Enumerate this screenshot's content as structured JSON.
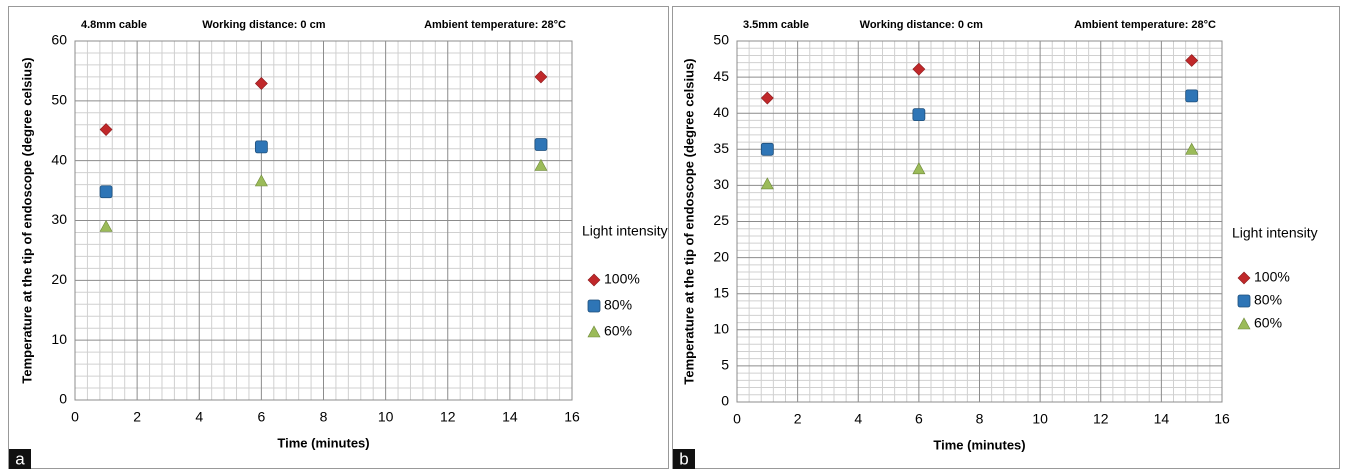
{
  "chart_data": [
    {
      "type": "scatter",
      "panel_label": "a",
      "annotations": [
        "4.8mm cable",
        "Working distance: 0 cm",
        "Ambient temperature: 28°C"
      ],
      "xlabel": "Time (minutes)",
      "ylabel": "Temperature at the tip of endoscope  (degree celsius)",
      "xlim": [
        0,
        16
      ],
      "xticks": [
        0,
        2,
        4,
        6,
        8,
        10,
        12,
        14,
        16
      ],
      "ylim": [
        0,
        60
      ],
      "yticks": [
        0,
        10,
        20,
        30,
        40,
        50,
        60
      ],
      "grid": true,
      "legend_title": "Light intensity",
      "series": [
        {
          "name": "100%",
          "color": "#c0282a",
          "marker": "diamond",
          "x": [
            1,
            6,
            15
          ],
          "values": [
            45.2,
            52.9,
            54
          ]
        },
        {
          "name": "80%",
          "color": "#2e75b6",
          "marker": "square",
          "x": [
            1,
            6,
            15
          ],
          "values": [
            34.8,
            42.3,
            42.7
          ]
        },
        {
          "name": "60%",
          "color": "#9bbb59",
          "marker": "triangle",
          "x": [
            1,
            6,
            15
          ],
          "values": [
            29,
            36.6,
            39.2
          ]
        }
      ]
    },
    {
      "type": "scatter",
      "panel_label": "b",
      "annotations": [
        "3.5mm cable",
        "Working distance: 0 cm",
        "Ambient temperature: 28°C"
      ],
      "xlabel": "Time (minutes)",
      "ylabel": "Temperature at the tip of endoscope  (degree celsius)",
      "xlim": [
        0,
        16
      ],
      "xticks": [
        0,
        2,
        4,
        6,
        8,
        10,
        12,
        14,
        16
      ],
      "ylim": [
        0,
        50
      ],
      "yticks": [
        0,
        5,
        10,
        15,
        20,
        25,
        30,
        35,
        40,
        45,
        50
      ],
      "grid": true,
      "legend_title": "Light intensity",
      "series": [
        {
          "name": "100%",
          "color": "#c0282a",
          "marker": "diamond",
          "x": [
            1,
            6,
            15
          ],
          "values": [
            42.1,
            46.1,
            47.3
          ]
        },
        {
          "name": "80%",
          "color": "#2e75b6",
          "marker": "square",
          "x": [
            1,
            6,
            15
          ],
          "values": [
            35,
            39.8,
            42.4
          ]
        },
        {
          "name": "60%",
          "color": "#9bbb59",
          "marker": "triangle",
          "x": [
            1,
            6,
            15
          ],
          "values": [
            30.2,
            32.3,
            35
          ]
        }
      ]
    }
  ]
}
